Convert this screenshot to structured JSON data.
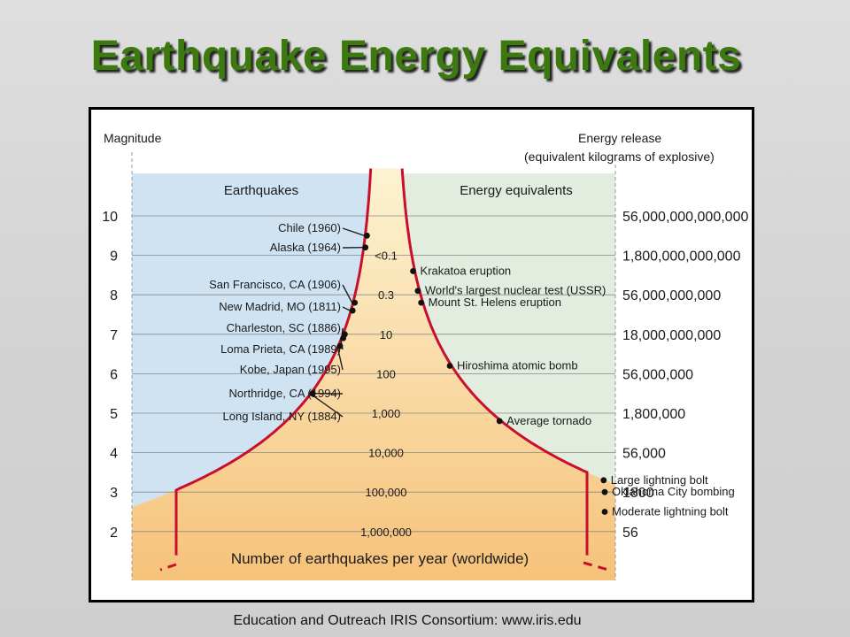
{
  "title": "Earthquake Energy Equivalents",
  "footer": "Education and Outreach IRIS Consortium: www.iris.edu",
  "figure": {
    "left_axis_title": "Magnitude",
    "right_axis_title_1": "Energy release",
    "right_axis_title_2": "(equivalent kilograms of explosive)",
    "left_panel_title": "Earthquakes",
    "right_panel_title": "Energy equivalents",
    "bottom_label": "Number of earthquakes per year (worldwide)",
    "colors": {
      "curve": "#c8102e",
      "left_bg": "#cfe3f3",
      "right_bg": "#e2ecdf",
      "fill_top": "#fdf0c4",
      "fill_bottom": "#f6c27a"
    },
    "magnitudes": [
      "10",
      "9",
      "8",
      "7",
      "6",
      "5",
      "4",
      "3",
      "2"
    ],
    "energies": [
      "56,000,000,000,000",
      "1,800,000,000,000",
      "56,000,000,000",
      "18,000,000,000",
      "56,000,000",
      "1,800,000",
      "56,000",
      "1800",
      "56"
    ],
    "counts": [
      {
        "label": "<0.1",
        "magnitude": 9
      },
      {
        "label": "0.3",
        "magnitude": 8
      },
      {
        "label": "10",
        "magnitude": 7
      },
      {
        "label": "100",
        "magnitude": 6
      },
      {
        "label": "1,000",
        "magnitude": 5
      },
      {
        "label": "10,000",
        "magnitude": 4
      },
      {
        "label": "100,000",
        "magnitude": 3
      },
      {
        "label": "1,000,000",
        "magnitude": 2
      }
    ],
    "earthquakes": [
      {
        "name": "Chile (1960)",
        "magnitude": 9.5
      },
      {
        "name": "Alaska (1964)",
        "magnitude": 9.2
      },
      {
        "name": "San Francisco, CA (1906)",
        "magnitude": 7.8
      },
      {
        "name": "New Madrid, MO (1811)",
        "magnitude": 7.6
      },
      {
        "name": "Charleston, SC (1886)",
        "magnitude": 7.0
      },
      {
        "name": "Loma Prieta, CA (1989)",
        "magnitude": 6.9
      },
      {
        "name": "Kobe, Japan (1995)",
        "magnitude": 6.7
      },
      {
        "name": "Northridge, CA (1994)",
        "magnitude": 5.5
      },
      {
        "name": "Long Island, NY (1884)",
        "magnitude": 5.5
      }
    ],
    "equivalents": [
      {
        "name": "Krakatoa eruption",
        "magnitude": 8.6
      },
      {
        "name": "World's largest nuclear test (USSR)",
        "magnitude": 8.1
      },
      {
        "name": "Mount St. Helens eruption",
        "magnitude": 7.8
      },
      {
        "name": "Hiroshima atomic bomb",
        "magnitude": 6.2
      },
      {
        "name": "Average tornado",
        "magnitude": 4.8
      },
      {
        "name": "Large lightning bolt",
        "magnitude": 3.3
      },
      {
        "name": "Oklahoma City bombing",
        "magnitude": 3.0
      },
      {
        "name": "Moderate lightning bolt",
        "magnitude": 2.5
      }
    ]
  }
}
